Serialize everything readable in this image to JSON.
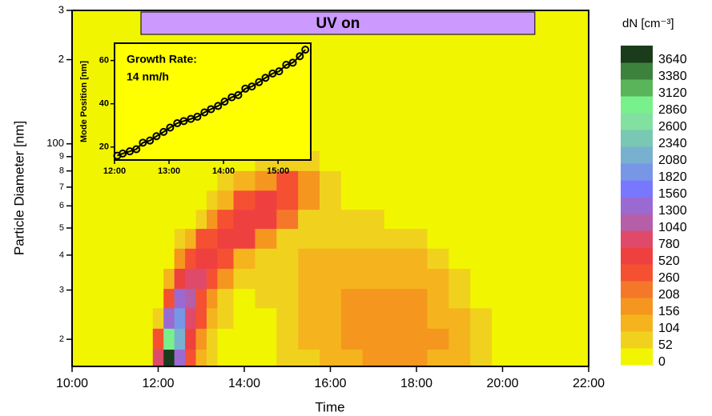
{
  "chart_data": [
    {
      "type": "contour",
      "xlabel": "Time",
      "ylabel": "Particle Diameter [nm]",
      "xlim": [
        10,
        22
      ],
      "xticks": [
        {
          "value": 10,
          "label": "10:00"
        },
        {
          "value": 12,
          "label": "12:00"
        },
        {
          "value": 14,
          "label": "14:00"
        },
        {
          "value": 16,
          "label": "16:00"
        },
        {
          "value": 18,
          "label": "18:00"
        },
        {
          "value": 20,
          "label": "20:00"
        },
        {
          "value": 22,
          "label": "22:00"
        }
      ],
      "ylim": [
        16,
        300
      ],
      "log_y": true,
      "yticks": [
        {
          "value": 20,
          "label": "2"
        },
        {
          "value": 30,
          "label": "3"
        },
        {
          "value": 40,
          "label": "4"
        },
        {
          "value": 50,
          "label": "5"
        },
        {
          "value": 60,
          "label": "6"
        },
        {
          "value": 70,
          "label": "7"
        },
        {
          "value": 80,
          "label": "8"
        },
        {
          "value": 90,
          "label": "9"
        },
        100,
        {
          "value": 200,
          "label": "2"
        },
        {
          "value": 300,
          "label": "3"
        }
      ],
      "x": [
        11.75,
        12,
        12.25,
        12.5,
        12.75,
        13,
        13.25,
        13.5,
        14,
        14.5,
        15,
        15.5,
        16,
        16.5,
        17,
        17.5,
        18,
        18.5,
        19,
        19.5,
        20
      ],
      "y": [
        17,
        20,
        24,
        28,
        33,
        39,
        46,
        54,
        63,
        74,
        87
      ],
      "z": [
        [
          0,
          800,
          3700,
          1500,
          300,
          120,
          60,
          40,
          30,
          30,
          60,
          100,
          130,
          150,
          160,
          170,
          170,
          150,
          120,
          70,
          30
        ],
        [
          0,
          300,
          3100,
          2200,
          600,
          200,
          80,
          50,
          30,
          40,
          70,
          110,
          140,
          160,
          180,
          190,
          180,
          160,
          120,
          70,
          30
        ],
        [
          0,
          80,
          1500,
          2000,
          1000,
          300,
          120,
          60,
          40,
          50,
          80,
          120,
          150,
          170,
          180,
          180,
          170,
          150,
          110,
          60,
          20
        ],
        [
          0,
          20,
          500,
          1300,
          1100,
          500,
          200,
          90,
          50,
          60,
          90,
          130,
          150,
          160,
          170,
          170,
          160,
          130,
          90,
          50,
          20
        ],
        [
          0,
          0,
          150,
          600,
          900,
          800,
          400,
          180,
          70,
          60,
          90,
          120,
          140,
          150,
          150,
          150,
          140,
          110,
          70,
          40,
          10
        ],
        [
          0,
          0,
          40,
          200,
          500,
          700,
          600,
          450,
          150,
          70,
          80,
          110,
          120,
          130,
          130,
          120,
          110,
          80,
          50,
          30,
          0
        ],
        [
          0,
          0,
          0,
          60,
          150,
          300,
          450,
          600,
          600,
          200,
          90,
          90,
          100,
          100,
          100,
          90,
          70,
          50,
          30,
          10,
          0
        ],
        [
          0,
          0,
          0,
          10,
          50,
          100,
          200,
          300,
          600,
          700,
          250,
          100,
          80,
          70,
          60,
          50,
          40,
          30,
          10,
          0,
          0
        ],
        [
          0,
          0,
          0,
          0,
          10,
          30,
          80,
          150,
          300,
          600,
          500,
          200,
          70,
          40,
          30,
          20,
          10,
          0,
          0,
          0,
          0
        ],
        [
          0,
          0,
          0,
          0,
          0,
          10,
          30,
          60,
          120,
          200,
          300,
          180,
          80,
          20,
          10,
          0,
          0,
          0,
          0,
          0,
          0
        ],
        [
          0,
          0,
          0,
          0,
          0,
          0,
          0,
          20,
          40,
          60,
          80,
          60,
          30,
          0,
          0,
          0,
          0,
          0,
          0,
          0,
          0
        ]
      ],
      "colorbar_title": "dN [cm⁻³]",
      "levels": [
        0,
        52,
        104,
        156,
        208,
        260,
        520,
        780,
        1040,
        1300,
        1560,
        1820,
        2080,
        2340,
        2600,
        2860,
        3120,
        3380,
        3640
      ],
      "colors": [
        "#f2f500",
        "#f0d21e",
        "#f5b41e",
        "#f5961e",
        "#f5782a",
        "#f55032",
        "#ef4040",
        "#e04a6a",
        "#b45fa8",
        "#9a6ad2",
        "#7878ff",
        "#7896e6",
        "#78b0d0",
        "#78c8b4",
        "#82e0a0",
        "#78f08c",
        "#5ab45a",
        "#3c823c",
        "#1a3c1a"
      ],
      "annotation": {
        "label": "UV on",
        "start": 11.6,
        "end": 20.75,
        "color": "#cc99ff"
      }
    },
    {
      "type": "scatter",
      "ylabel": "Mode Position [nm]",
      "annotation": [
        "Growth Rate:",
        "14 nm/h"
      ],
      "xlim": [
        12,
        15.6
      ],
      "xticks": [
        {
          "value": 12,
          "label": "12:00"
        },
        {
          "value": 13,
          "label": "13:00"
        },
        {
          "value": 14,
          "label": "14:00"
        },
        {
          "value": 15,
          "label": "15:00"
        }
      ],
      "ylim": [
        14,
        68
      ],
      "yticks": [
        20,
        40,
        60
      ],
      "x": [
        12.05,
        12.15,
        12.28,
        12.4,
        12.52,
        12.65,
        12.77,
        12.9,
        13.02,
        13.15,
        13.27,
        13.4,
        13.52,
        13.65,
        13.77,
        13.9,
        14.02,
        14.15,
        14.27,
        14.4,
        14.52,
        14.65,
        14.77,
        14.9,
        15.02,
        15.15,
        15.27,
        15.4,
        15.5
      ],
      "values": [
        16,
        17,
        18,
        19,
        22,
        23,
        25,
        27,
        29,
        31,
        32,
        33,
        34,
        36,
        37.5,
        39,
        41,
        43,
        44,
        47,
        48,
        50,
        52,
        54,
        55,
        58,
        59,
        62,
        65
      ],
      "color": "#000000"
    }
  ]
}
